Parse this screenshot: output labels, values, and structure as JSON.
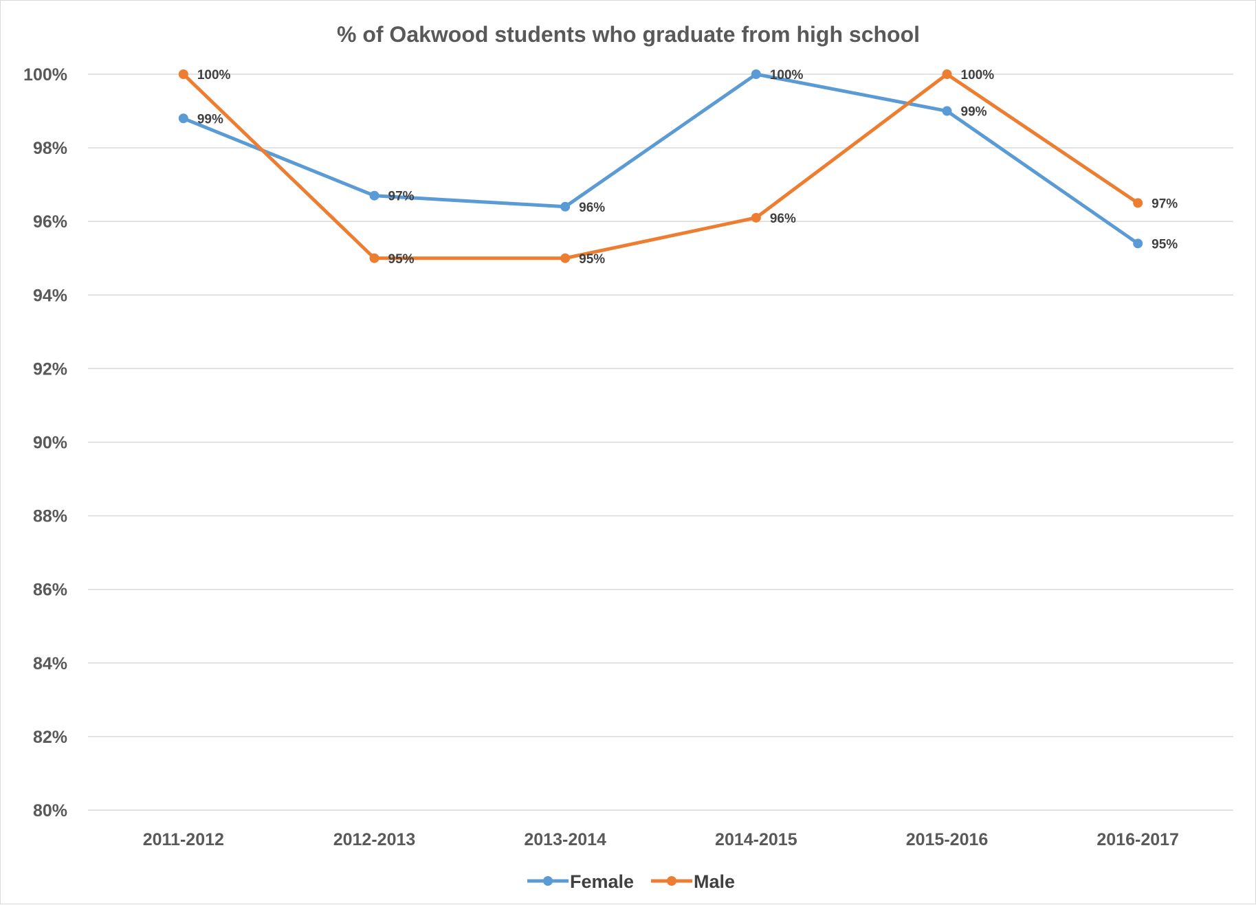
{
  "chart_data": {
    "type": "line",
    "title": "% of Oakwood students who graduate from high school",
    "categories": [
      "2011-2012",
      "2012-2013",
      "2013-2014",
      "2014-2015",
      "2015-2016",
      "2016-2017"
    ],
    "ylim": [
      80,
      100
    ],
    "yticks": [
      80,
      82,
      84,
      86,
      88,
      90,
      92,
      94,
      96,
      98,
      100
    ],
    "ytick_labels": [
      "80%",
      "82%",
      "84%",
      "86%",
      "88%",
      "90%",
      "92%",
      "94%",
      "96%",
      "98%",
      "100%"
    ],
    "grid": true,
    "legend_position": "bottom",
    "series": [
      {
        "name": "Female",
        "color": "#5B9BD5",
        "values": [
          98.8,
          96.7,
          96.4,
          100,
          99.0,
          95.4
        ],
        "labels": [
          "99%",
          "97%",
          "96%",
          "100%",
          "99%",
          "95%"
        ]
      },
      {
        "name": "Male",
        "color": "#ED7D31",
        "values": [
          100,
          95.0,
          95.0,
          96.1,
          100,
          96.5
        ],
        "labels": [
          "100%",
          "95%",
          "95%",
          "96%",
          "100%",
          "97%"
        ]
      }
    ]
  }
}
